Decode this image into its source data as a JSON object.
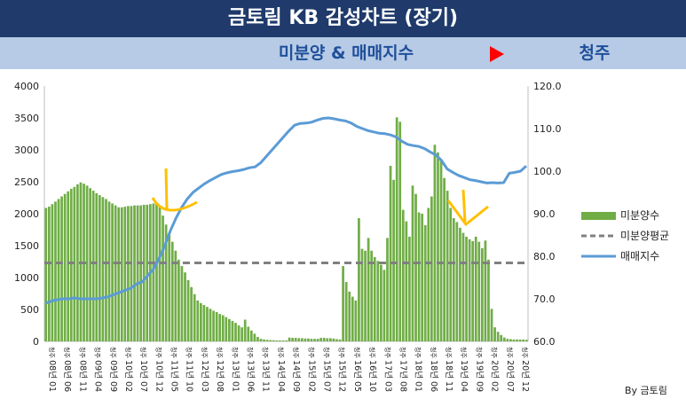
{
  "header": {
    "title": "금토림 KB 감성차트 (장기)",
    "subtitle": "미분양 & 매매지수",
    "region": "청주",
    "region_arrow_color": "#ff0000"
  },
  "credit": "By 금토림",
  "chart_data": {
    "type": "bar+line",
    "title": "",
    "y_left": {
      "min": 0,
      "max": 4000,
      "ticks": [
        "0",
        "500",
        "1000",
        "1500",
        "2000",
        "2500",
        "3000",
        "3500",
        "4000"
      ]
    },
    "y_right": {
      "min": 60,
      "max": 120,
      "ticks": [
        "60.0",
        "70.0",
        "80.0",
        "90.0",
        "100.0",
        "110.0",
        "120.0"
      ]
    },
    "x_tick_labels": [
      "08년 01",
      "08년 06",
      "08년 11",
      "09년 04",
      "09년 09",
      "10년 02",
      "10년 07",
      "10년 12",
      "11년 05",
      "11년 10",
      "12년 03",
      "12년 08",
      "13년 01",
      "13년 06",
      "13년 11",
      "14년 04",
      "14년 09",
      "15년 02",
      "15년 07",
      "15년 12",
      "16년 05",
      "16년 10",
      "17년 03",
      "17년 08",
      "18년 01",
      "18년 06",
      "18년 11",
      "19년 04",
      "19년 09",
      "20년 02",
      "20년 07",
      "20년 12"
    ],
    "x_tick_prefix": "청주",
    "series": [
      {
        "name": "미분양수",
        "type": "bar",
        "axis": "left",
        "color": "#70ad47",
        "values": [
          2090,
          2110,
          2150,
          2190,
          2230,
          2270,
          2310,
          2350,
          2390,
          2420,
          2460,
          2490,
          2470,
          2440,
          2400,
          2360,
          2320,
          2290,
          2260,
          2230,
          2190,
          2160,
          2130,
          2100,
          2100,
          2110,
          2120,
          2120,
          2130,
          2130,
          2130,
          2140,
          2140,
          2150,
          2160,
          2170,
          2110,
          1970,
          1830,
          1700,
          1560,
          1420,
          1280,
          1180,
          1080,
          960,
          850,
          740,
          640,
          600,
          570,
          540,
          510,
          480,
          460,
          430,
          410,
          380,
          350,
          320,
          290,
          250,
          220,
          340,
          230,
          170,
          120,
          70,
          40,
          30,
          25,
          20,
          18,
          15,
          15,
          15,
          15,
          60,
          55,
          55,
          50,
          50,
          45,
          45,
          40,
          40,
          40,
          55,
          55,
          50,
          50,
          45,
          35,
          30,
          1180,
          930,
          780,
          700,
          640,
          1930,
          1450,
          1420,
          1620,
          1420,
          1320,
          1260,
          1200,
          1120,
          1620,
          2750,
          2530,
          3510,
          3440,
          2060,
          1880,
          1640,
          2440,
          2310,
          2020,
          2000,
          1820,
          2090,
          2270,
          3080,
          2960,
          2830,
          2560,
          2360,
          2090,
          1930,
          1870,
          1780,
          1700,
          1640,
          1600,
          1570,
          1640,
          1560,
          1460,
          1580,
          1280,
          510,
          220,
          150,
          100,
          60,
          40,
          35,
          30,
          30,
          30,
          30,
          25
        ]
      },
      {
        "name": "미분양평균",
        "type": "line",
        "axis": "left",
        "color": "#808080",
        "style": "dashed",
        "values": [
          1230
        ]
      },
      {
        "name": "매매지수",
        "type": "line",
        "axis": "right",
        "color": "#5b9bd5",
        "values": [
          69,
          69.5,
          69.8,
          70,
          70,
          70.2,
          70,
          70,
          70,
          70,
          70.2,
          70.5,
          71,
          71.5,
          72,
          72.5,
          73.5,
          74,
          75.5,
          77,
          79.5,
          82.5,
          86,
          89,
          91.5,
          93.5,
          95,
          96,
          97,
          97.8,
          98.5,
          99.2,
          99.6,
          99.9,
          100.1,
          100.4,
          100.8,
          101,
          102,
          103.5,
          105,
          106.5,
          108,
          109.5,
          110.8,
          111.2,
          111.3,
          111.5,
          112,
          112.4,
          112.5,
          112.3,
          112,
          111.8,
          111.3,
          110.5,
          110,
          109.5,
          109.2,
          108.9,
          108.8,
          108.5,
          108,
          107,
          106.3,
          106,
          105.8,
          105.3,
          104.5,
          103.8,
          102.5,
          100.5,
          99.7,
          99,
          98.5,
          98,
          97.8,
          97.5,
          97.2,
          97.3,
          97.2,
          97.3,
          99.5,
          99.7,
          100,
          101.2
        ]
      }
    ],
    "legend": [
      "미분양수",
      "미분양평균",
      "매매지수"
    ],
    "legend_position": "right"
  }
}
